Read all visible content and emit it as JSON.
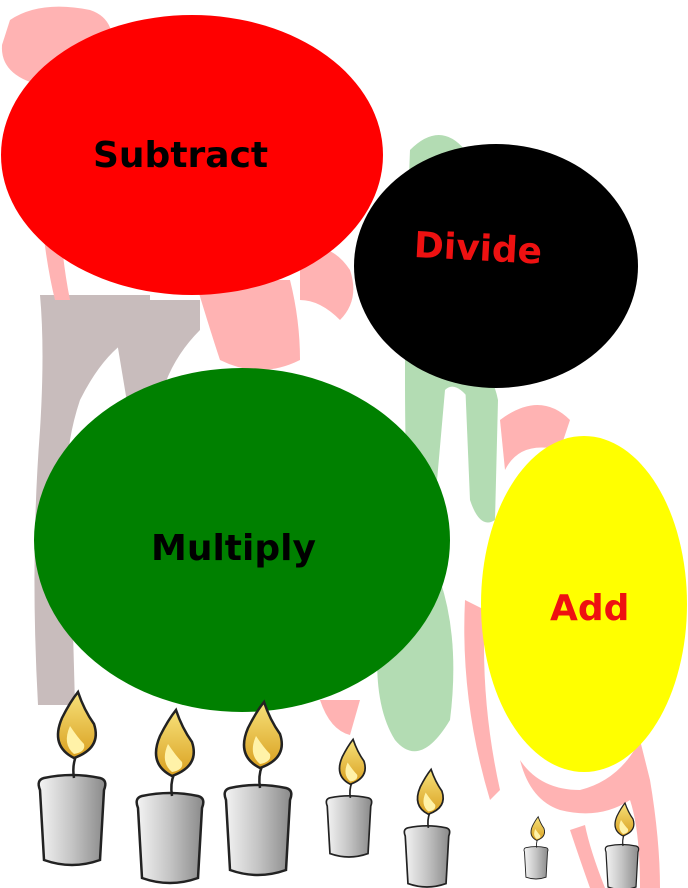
{
  "buttons": {
    "subtract": {
      "label": "Subtract",
      "fill": "#ff0000",
      "text_color": "#000000"
    },
    "divide": {
      "label": "Divide",
      "fill": "#000000",
      "text_color": "#ee1111"
    },
    "multiply": {
      "label": "Multiply",
      "fill": "#008000",
      "text_color": "#000000"
    },
    "add": {
      "label": "Add",
      "fill": "#ffff00",
      "text_color": "#ee1111"
    }
  },
  "background": {
    "decoration_colors": [
      "#ffb3b3",
      "#b3dcb3",
      "#c8bcbc"
    ]
  },
  "candles": {
    "count": 7,
    "icon": "candle-icon",
    "body_color": "#c8c8c8",
    "flame_color": "#f2c12e"
  }
}
